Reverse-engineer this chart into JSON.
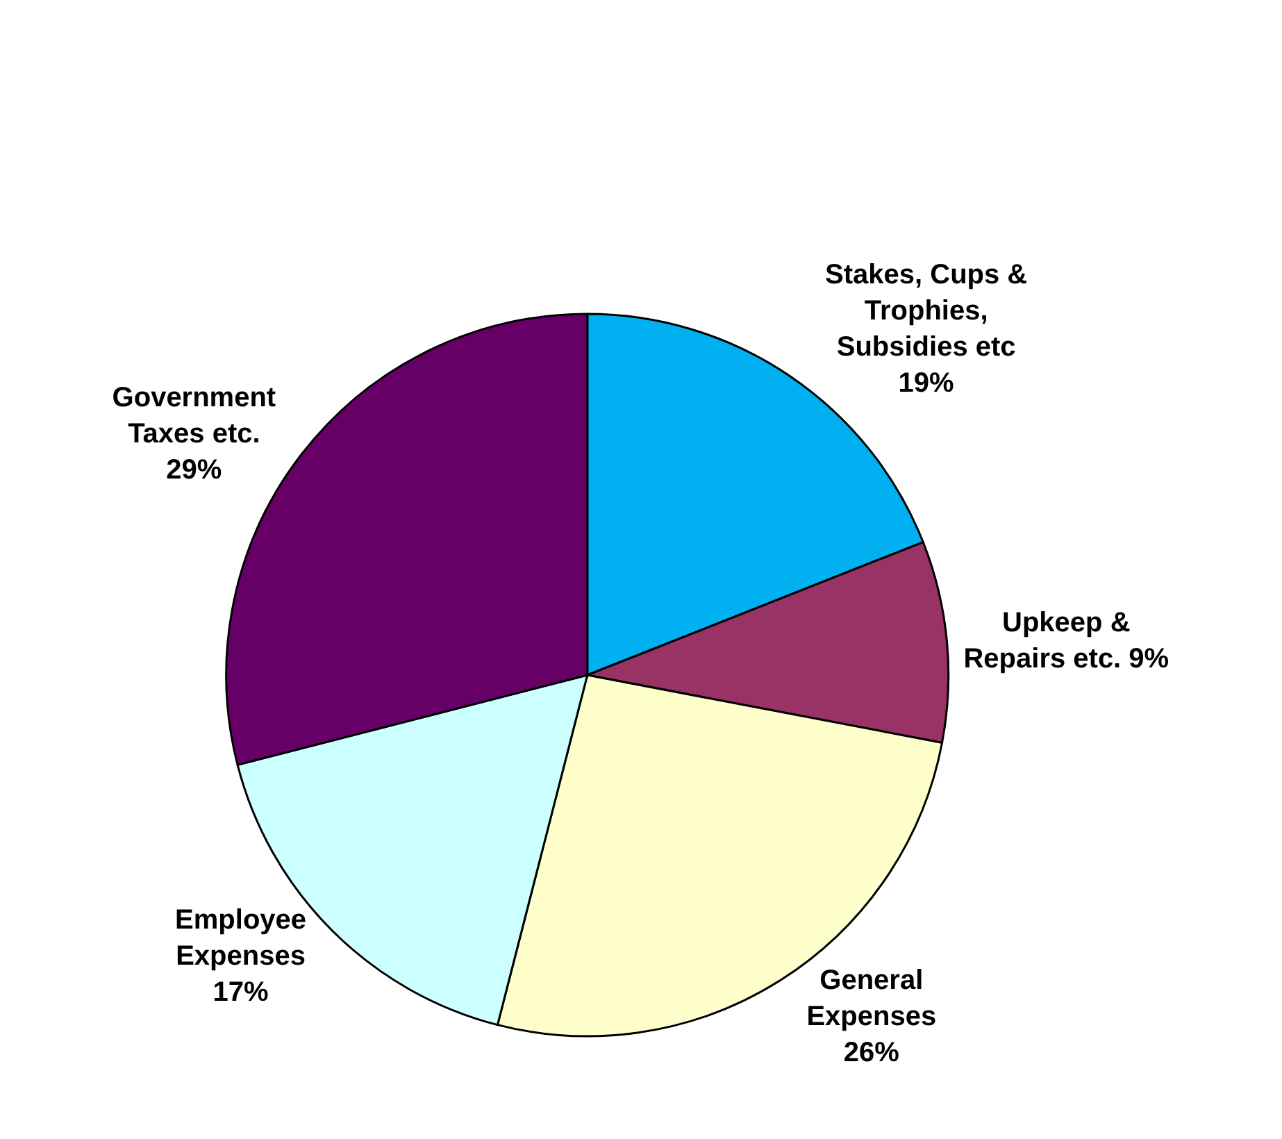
{
  "chart_data": {
    "type": "pie",
    "categories": [
      "Stakes, Cups &\nTrophies,\nSubsidies etc",
      "Upkeep &\nRepairs etc.",
      "General\nExpenses",
      "Employee\nExpenses",
      "Government\nTaxes etc."
    ],
    "values": [
      19,
      9,
      26,
      17,
      29
    ],
    "colors": [
      "#00b0f0",
      "#993366",
      "#ffffcc",
      "#ccffff",
      "#660066"
    ],
    "value_labels": [
      "19%",
      "9%",
      "26%",
      "17%",
      "29%"
    ],
    "legend": false
  }
}
